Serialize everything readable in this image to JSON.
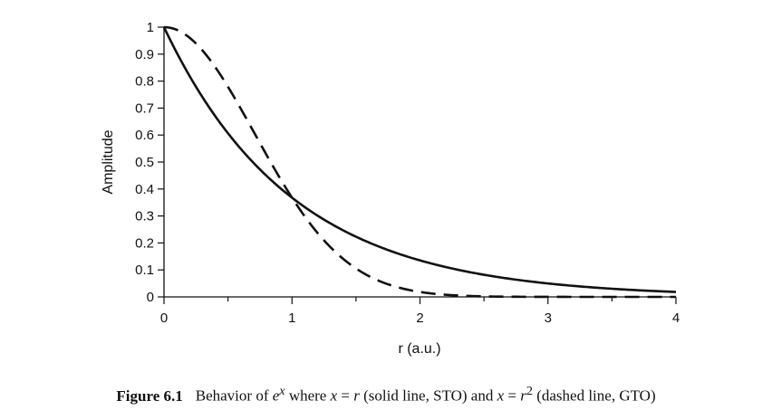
{
  "chart_data": {
    "type": "line",
    "title": "",
    "xlabel": "r (a.u.)",
    "ylabel": "Amplitude",
    "xlim": [
      0,
      4
    ],
    "ylim": [
      0,
      1
    ],
    "x_ticks": [
      0,
      1,
      2,
      3,
      4
    ],
    "y_ticks": [
      0,
      0.1,
      0.2,
      0.3,
      0.4,
      0.5,
      0.6,
      0.7,
      0.8,
      0.9,
      1
    ],
    "x_tick_labels": [
      "0",
      "1",
      "2",
      "3",
      "4"
    ],
    "y_tick_labels": [
      "0",
      "0.1",
      "0.2",
      "0.3",
      "0.4",
      "0.5",
      "0.6",
      "0.7",
      "0.8",
      "0.9",
      "1"
    ],
    "grid": false,
    "series": [
      {
        "name": "STO",
        "style": "solid",
        "x": [
          0,
          0.25,
          0.5,
          0.75,
          1,
          1.25,
          1.5,
          1.75,
          2,
          2.25,
          2.5,
          2.75,
          3,
          3.25,
          3.5,
          3.75,
          4
        ],
        "values": [
          1,
          0.779,
          0.607,
          0.472,
          0.368,
          0.287,
          0.223,
          0.174,
          0.135,
          0.105,
          0.082,
          0.064,
          0.05,
          0.039,
          0.03,
          0.024,
          0.018
        ]
      },
      {
        "name": "GTO",
        "style": "dashed",
        "x": [
          0,
          0.25,
          0.5,
          0.75,
          1,
          1.25,
          1.5,
          1.75,
          2,
          2.25,
          2.5,
          2.75,
          3,
          3.25,
          3.5,
          3.75,
          4
        ],
        "values": [
          1,
          0.939,
          0.779,
          0.57,
          0.368,
          0.21,
          0.105,
          0.047,
          0.018,
          0.006,
          0.002,
          0.001,
          0,
          0,
          0,
          0,
          0
        ]
      }
    ]
  },
  "caption": {
    "figure_number": "Figure 6.1",
    "text_1": "Behavior of ",
    "e": "e",
    "x_sup": "x",
    "text_2": " where ",
    "x1": "x",
    "eq1": " = ",
    "r1": "r",
    "text_3": " (solid line, STO) and ",
    "x2": "x",
    "eq2": " = ",
    "r2": "r",
    "sup2": "2",
    "text_4": " (dashed line, GTO)"
  }
}
